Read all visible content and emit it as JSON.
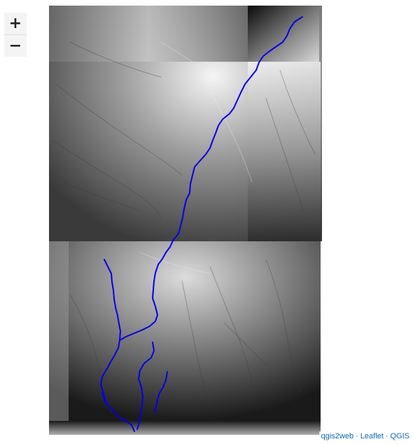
{
  "map": {
    "zoom_in_label": "+",
    "zoom_out_label": "−",
    "river_color": "#0000ee",
    "attribution": {
      "links": [
        "qgis2web",
        "Leaflet",
        "QGIS"
      ],
      "separator": "·"
    }
  }
}
